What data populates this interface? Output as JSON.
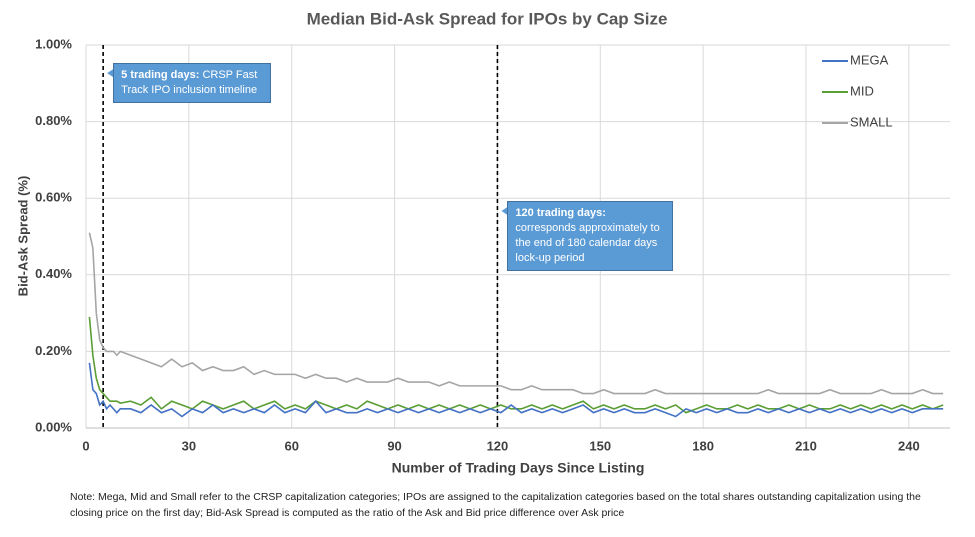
{
  "chart_data": {
    "type": "line",
    "title": "Median Bid-Ask Spread for IPOs by Cap Size",
    "x_label": "Number of Trading Days Since Listing",
    "y_label": "Bid-Ask Spread (%)",
    "note": "Note: Mega, Mid and Small refer to the CRSP capitalization categories; IPOs are assigned to the capitalization categories based on the total shares outstanding capitalization using the closing price on the first day; Bid-Ask Spread is computed as the ratio of the Ask and Bid price difference over Ask price",
    "xlim": [
      0,
      252
    ],
    "ylim": [
      0,
      1
    ],
    "xticks": [
      0,
      30,
      60,
      90,
      120,
      150,
      180,
      210,
      240
    ],
    "yticks": [
      {
        "value": 0,
        "label": "0.00%"
      },
      {
        "value": 0.2,
        "label": "0.20%"
      },
      {
        "value": 0.4,
        "label": "0.40%"
      },
      {
        "value": 0.6,
        "label": "0.60%"
      },
      {
        "value": 0.8,
        "label": "0.80%"
      },
      {
        "value": 1,
        "label": "1.00%"
      }
    ],
    "grid": true,
    "legend": "upper right",
    "annotations": [
      {
        "x": 5,
        "y": 0.95,
        "bold": "5 trading days:",
        "text": "CRSP Fast Track IPO inclusion timeline"
      },
      {
        "x": 120,
        "y": 0.59,
        "bold": "120 trading days:",
        "text": "corresponds approximately to the end of 180 calendar days lock-up period"
      }
    ],
    "x": [
      1,
      2,
      3,
      4,
      5,
      6,
      7,
      8,
      9,
      10,
      13,
      16,
      19,
      22,
      25,
      28,
      31,
      34,
      37,
      40,
      43,
      46,
      49,
      52,
      55,
      58,
      61,
      64,
      67,
      70,
      73,
      76,
      79,
      82,
      85,
      88,
      91,
      94,
      97,
      100,
      103,
      106,
      109,
      112,
      115,
      118,
      121,
      124,
      127,
      130,
      133,
      136,
      139,
      142,
      145,
      148,
      151,
      154,
      157,
      160,
      163,
      166,
      169,
      172,
      175,
      178,
      181,
      184,
      187,
      190,
      193,
      196,
      199,
      202,
      205,
      208,
      211,
      214,
      217,
      220,
      223,
      226,
      229,
      232,
      235,
      238,
      241,
      244,
      247,
      250
    ],
    "series": [
      {
        "name": "MEGA",
        "color": "#4472c4",
        "values": [
          0.17,
          0.1,
          0.09,
          0.06,
          0.07,
          0.05,
          0.06,
          0.05,
          0.04,
          0.05,
          0.05,
          0.04,
          0.06,
          0.04,
          0.05,
          0.03,
          0.05,
          0.04,
          0.06,
          0.04,
          0.05,
          0.04,
          0.05,
          0.04,
          0.06,
          0.04,
          0.05,
          0.04,
          0.07,
          0.04,
          0.05,
          0.04,
          0.04,
          0.05,
          0.04,
          0.05,
          0.04,
          0.05,
          0.04,
          0.05,
          0.04,
          0.05,
          0.04,
          0.05,
          0.04,
          0.05,
          0.04,
          0.06,
          0.04,
          0.05,
          0.04,
          0.05,
          0.04,
          0.05,
          0.06,
          0.04,
          0.05,
          0.04,
          0.05,
          0.04,
          0.04,
          0.05,
          0.04,
          0.03,
          0.05,
          0.04,
          0.05,
          0.04,
          0.05,
          0.04,
          0.04,
          0.05,
          0.04,
          0.05,
          0.04,
          0.05,
          0.04,
          0.05,
          0.04,
          0.05,
          0.04,
          0.05,
          0.04,
          0.05,
          0.04,
          0.05,
          0.04,
          0.05,
          0.05,
          0.05
        ]
      },
      {
        "name": "MID",
        "color": "#5b9e35",
        "values": [
          0.29,
          0.19,
          0.13,
          0.1,
          0.09,
          0.08,
          0.07,
          0.07,
          0.07,
          0.065,
          0.07,
          0.06,
          0.08,
          0.05,
          0.07,
          0.06,
          0.05,
          0.07,
          0.06,
          0.05,
          0.06,
          0.07,
          0.05,
          0.06,
          0.07,
          0.05,
          0.06,
          0.05,
          0.07,
          0.06,
          0.05,
          0.06,
          0.05,
          0.07,
          0.06,
          0.05,
          0.06,
          0.05,
          0.06,
          0.05,
          0.06,
          0.05,
          0.06,
          0.05,
          0.06,
          0.05,
          0.06,
          0.05,
          0.05,
          0.06,
          0.05,
          0.06,
          0.05,
          0.06,
          0.07,
          0.05,
          0.06,
          0.05,
          0.06,
          0.05,
          0.05,
          0.06,
          0.05,
          0.06,
          0.04,
          0.05,
          0.06,
          0.05,
          0.05,
          0.06,
          0.05,
          0.06,
          0.05,
          0.05,
          0.06,
          0.05,
          0.06,
          0.05,
          0.05,
          0.06,
          0.05,
          0.06,
          0.05,
          0.06,
          0.05,
          0.06,
          0.05,
          0.06,
          0.05,
          0.06
        ]
      },
      {
        "name": "SMALL",
        "color": "#a5a5a5",
        "values": [
          0.51,
          0.47,
          0.3,
          0.23,
          0.21,
          0.2,
          0.2,
          0.2,
          0.19,
          0.2,
          0.19,
          0.18,
          0.17,
          0.16,
          0.18,
          0.16,
          0.17,
          0.15,
          0.16,
          0.15,
          0.15,
          0.16,
          0.14,
          0.15,
          0.14,
          0.14,
          0.14,
          0.13,
          0.14,
          0.13,
          0.13,
          0.12,
          0.13,
          0.12,
          0.12,
          0.12,
          0.13,
          0.12,
          0.12,
          0.12,
          0.11,
          0.12,
          0.11,
          0.11,
          0.11,
          0.11,
          0.11,
          0.1,
          0.1,
          0.11,
          0.1,
          0.1,
          0.1,
          0.1,
          0.09,
          0.09,
          0.1,
          0.09,
          0.09,
          0.09,
          0.09,
          0.1,
          0.09,
          0.09,
          0.09,
          0.09,
          0.09,
          0.09,
          0.09,
          0.09,
          0.09,
          0.09,
          0.1,
          0.09,
          0.09,
          0.09,
          0.09,
          0.09,
          0.1,
          0.09,
          0.09,
          0.09,
          0.09,
          0.1,
          0.09,
          0.09,
          0.09,
          0.1,
          0.09,
          0.09
        ]
      }
    ]
  }
}
